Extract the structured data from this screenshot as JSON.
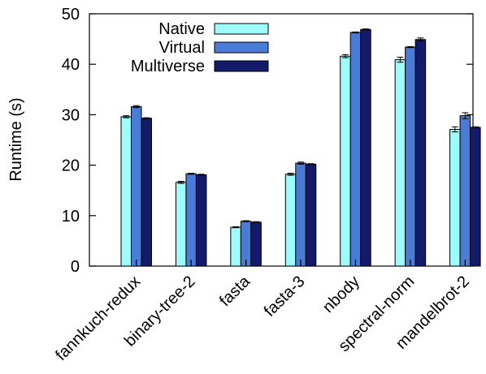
{
  "chart_data": {
    "type": "bar",
    "title": "",
    "xlabel": "",
    "ylabel": "Runtime (s)",
    "ylim": [
      0,
      50
    ],
    "yticks": [
      0,
      10,
      20,
      30,
      40,
      50
    ],
    "grid": false,
    "legend_position": "top-left",
    "categories": [
      "fannkuch-redux",
      "binary-tree-2",
      "fasta",
      "fasta-3",
      "nbody",
      "spectral-norm",
      "mandelbrot-2"
    ],
    "series": [
      {
        "name": "Native",
        "color": "#9ffcfc",
        "values": [
          29.6,
          16.6,
          7.7,
          18.2,
          41.6,
          40.9,
          27.1
        ],
        "errors": [
          0.2,
          0.2,
          0.1,
          0.2,
          0.3,
          0.5,
          0.5
        ]
      },
      {
        "name": "Virtual",
        "color": "#4a7bd6",
        "values": [
          31.6,
          18.3,
          8.9,
          20.4,
          46.3,
          43.4,
          29.8
        ],
        "errors": [
          0.2,
          0.1,
          0.1,
          0.2,
          0.1,
          0.1,
          0.6
        ]
      },
      {
        "name": "Multiverse",
        "color": "#141a6a",
        "values": [
          29.3,
          18.1,
          8.7,
          20.2,
          46.9,
          44.9,
          27.5
        ],
        "errors": [
          0.1,
          0.1,
          0.1,
          0.1,
          0.1,
          0.3,
          0.1
        ]
      }
    ]
  }
}
